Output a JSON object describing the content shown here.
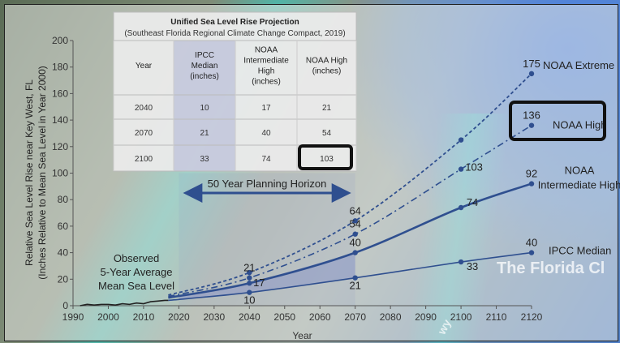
{
  "background": {
    "watermark": "The Florida Cl",
    "road_label": "wy"
  },
  "table": {
    "title": "Unified Sea Level Rise Projection",
    "subtitle": "(Southeast Florida Regional Climate Change Compact, 2019)",
    "headers": [
      "Year",
      "IPCC Median (inches)",
      "NOAA Intermediate High (inches)",
      "NOAA High (inches)"
    ],
    "rows": [
      {
        "year": "2040",
        "ipcc": "10",
        "noaa_int": "17",
        "noaa_high": "21"
      },
      {
        "year": "2070",
        "ipcc": "21",
        "noaa_int": "40",
        "noaa_high": "54"
      },
      {
        "year": "2100",
        "ipcc": "33",
        "noaa_int": "74",
        "noaa_high": "103"
      }
    ],
    "highlighted_cell": "103"
  },
  "chart_data": {
    "type": "line",
    "xlabel": "Year",
    "ylabel_line1": "Relative Sea Level Rise near Key West, FL",
    "ylabel_line2": "(Inches Relative to Mean Sea Level in Year 2000)",
    "xlim": [
      1990,
      2120
    ],
    "ylim": [
      0,
      200
    ],
    "xticks": [
      1990,
      2000,
      2010,
      2020,
      2030,
      2040,
      2050,
      2060,
      2070,
      2080,
      2090,
      2100,
      2110,
      2120
    ],
    "yticks": [
      0,
      20,
      40,
      60,
      80,
      100,
      120,
      140,
      160,
      180,
      200
    ],
    "observed": {
      "label_lines": [
        "Observed",
        "5-Year Average",
        "Mean Sea Level"
      ],
      "x": [
        1992,
        1994,
        1996,
        1998,
        2000,
        2002,
        2004,
        2006,
        2008,
        2010,
        2012,
        2014,
        2016,
        2017
      ],
      "y": [
        0,
        1,
        0.5,
        1,
        1,
        0.5,
        1.5,
        1,
        2,
        1.5,
        3,
        3.5,
        4,
        4
      ]
    },
    "planning_horizon": {
      "label": "50 Year Planning Horizon",
      "from": 2020,
      "to": 2070
    },
    "series": [
      {
        "name": "IPCC Median",
        "style": "solid",
        "color": "#2f4f8f",
        "x": [
          2017,
          2040,
          2070,
          2100,
          2120
        ],
        "y": [
          4,
          10,
          21,
          33,
          40
        ],
        "labels": [
          {
            "x": 2040,
            "text": "10"
          },
          {
            "x": 2070,
            "text": "21"
          },
          {
            "x": 2100,
            "text": "33"
          },
          {
            "x": 2120,
            "text": "40"
          }
        ]
      },
      {
        "name": "NOAA Intermediate High",
        "name_lines": [
          "NOAA",
          "Intermediate High"
        ],
        "style": "solid-thick",
        "color": "#2f4f8f",
        "x": [
          2017,
          2040,
          2070,
          2100,
          2120
        ],
        "y": [
          6,
          17,
          40,
          74,
          92
        ],
        "labels": [
          {
            "x": 2040,
            "text": "17"
          },
          {
            "x": 2070,
            "text": "40"
          },
          {
            "x": 2100,
            "text": "74"
          },
          {
            "x": 2120,
            "text": "92"
          }
        ]
      },
      {
        "name": "NOAA High",
        "style": "dash-dot",
        "color": "#2f4f8f",
        "x": [
          2017,
          2040,
          2070,
          2100,
          2120
        ],
        "y": [
          7,
          21,
          54,
          103,
          136
        ],
        "labels": [
          {
            "x": 2040,
            "text": "21"
          },
          {
            "x": 2070,
            "text": "54"
          },
          {
            "x": 2100,
            "text": "103"
          },
          {
            "x": 2120,
            "text": "136"
          }
        ]
      },
      {
        "name": "NOAA Extreme",
        "style": "dotted",
        "color": "#2f4f8f",
        "x": [
          2017,
          2040,
          2070,
          2100,
          2120
        ],
        "y": [
          8,
          25,
          64,
          125,
          175
        ],
        "labels": [
          {
            "x": 2070,
            "text": "64"
          },
          {
            "x": 2120,
            "text": "175"
          }
        ]
      }
    ],
    "colors": {
      "line": "#2f4f8f",
      "axis": "#555555",
      "box": "#111111",
      "shade": "#8c97c8"
    }
  }
}
